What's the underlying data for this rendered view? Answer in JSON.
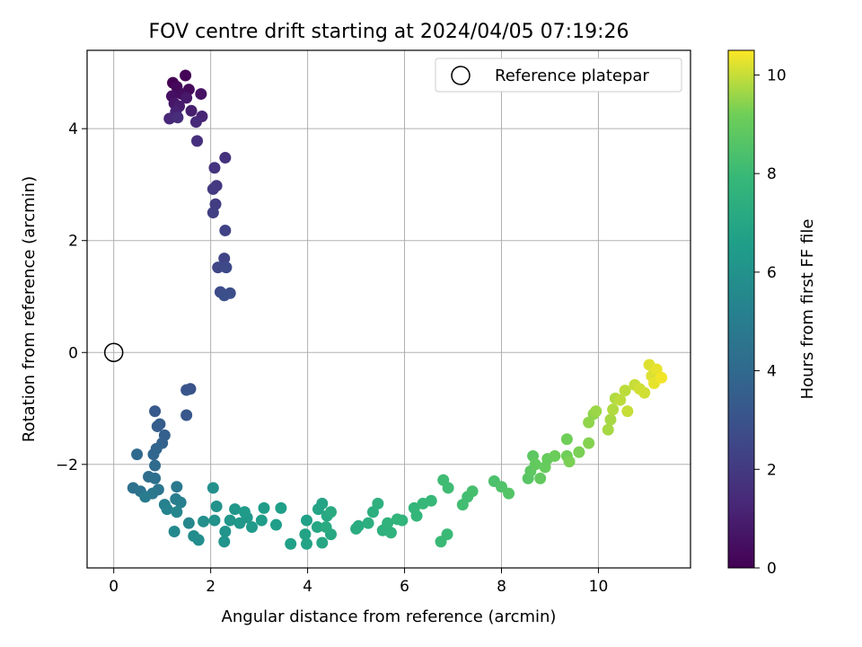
{
  "chart_data": {
    "type": "scatter",
    "title": "FOV centre drift starting at 2024/04/05 07:19:26",
    "xlabel": "Angular distance from reference (arcmin)",
    "ylabel": "Rotation from reference (arcmin)",
    "xlim": [
      -0.55,
      11.9
    ],
    "ylim": [
      -3.85,
      5.4
    ],
    "xticks": [
      0,
      2,
      4,
      6,
      8,
      10
    ],
    "yticks": [
      -2,
      0,
      2,
      4
    ],
    "grid": true,
    "legend": {
      "placement": "top-right",
      "entries": [
        "Reference platepar"
      ]
    },
    "reference_point": {
      "x": 0,
      "y": 0,
      "marker": "hollow-circle"
    },
    "colorbar": {
      "label": "Hours from first FF file",
      "range": [
        0,
        10.5
      ],
      "ticks": [
        0,
        2,
        4,
        6,
        8,
        10
      ],
      "colormap": "viridis"
    },
    "point_layout": "x, y, hours",
    "points": [
      [
        1.22,
        4.82,
        0.0
      ],
      [
        1.48,
        4.95,
        0.1
      ],
      [
        1.3,
        4.75,
        0.2
      ],
      [
        1.55,
        4.7,
        0.3
      ],
      [
        1.4,
        4.62,
        0.4
      ],
      [
        1.2,
        4.58,
        0.5
      ],
      [
        1.8,
        4.62,
        0.6
      ],
      [
        1.25,
        4.45,
        0.7
      ],
      [
        1.5,
        4.55,
        0.8
      ],
      [
        1.35,
        4.4,
        0.9
      ],
      [
        1.6,
        4.32,
        1.0
      ],
      [
        1.28,
        4.3,
        1.1
      ],
      [
        1.82,
        4.22,
        1.2
      ],
      [
        1.15,
        4.18,
        1.3
      ],
      [
        1.7,
        4.12,
        1.4
      ],
      [
        1.32,
        4.2,
        1.5
      ],
      [
        1.72,
        3.78,
        1.6
      ],
      [
        2.3,
        3.48,
        1.7
      ],
      [
        2.08,
        3.3,
        1.8
      ],
      [
        2.12,
        2.98,
        1.9
      ],
      [
        2.05,
        2.92,
        2.0
      ],
      [
        2.1,
        2.65,
        2.1
      ],
      [
        2.05,
        2.5,
        2.2
      ],
      [
        2.3,
        2.18,
        2.3
      ],
      [
        2.28,
        1.68,
        2.4
      ],
      [
        2.15,
        1.52,
        2.5
      ],
      [
        2.32,
        1.52,
        2.6
      ],
      [
        2.2,
        1.08,
        2.7
      ],
      [
        2.4,
        1.06,
        2.8
      ],
      [
        2.28,
        1.02,
        2.9
      ],
      [
        1.58,
        -0.65,
        3.0
      ],
      [
        1.5,
        -0.67,
        3.1
      ],
      [
        1.5,
        -1.12,
        3.2
      ],
      [
        0.85,
        -1.05,
        3.3
      ],
      [
        0.95,
        -1.28,
        3.4
      ],
      [
        0.9,
        -1.32,
        3.5
      ],
      [
        1.05,
        -1.48,
        3.6
      ],
      [
        1.0,
        -1.62,
        3.7
      ],
      [
        0.88,
        -1.72,
        3.8
      ],
      [
        0.82,
        -1.82,
        3.9
      ],
      [
        0.48,
        -1.82,
        4.0
      ],
      [
        0.85,
        -2.02,
        4.1
      ],
      [
        0.72,
        -2.22,
        4.2
      ],
      [
        0.85,
        -2.25,
        4.3
      ],
      [
        0.4,
        -2.42,
        4.4
      ],
      [
        0.55,
        -2.48,
        4.5
      ],
      [
        0.92,
        -2.45,
        4.6
      ],
      [
        0.8,
        -2.52,
        4.7
      ],
      [
        1.3,
        -2.4,
        4.8
      ],
      [
        0.65,
        -2.58,
        4.9
      ],
      [
        1.28,
        -2.62,
        5.0
      ],
      [
        1.38,
        -2.68,
        5.1
      ],
      [
        1.05,
        -2.72,
        5.2
      ],
      [
        1.1,
        -2.8,
        5.3
      ],
      [
        1.3,
        -2.85,
        5.4
      ],
      [
        1.55,
        -3.05,
        5.5
      ],
      [
        1.25,
        -3.2,
        5.6
      ],
      [
        1.65,
        -3.28,
        5.7
      ],
      [
        1.75,
        -3.35,
        5.8
      ],
      [
        1.85,
        -3.02,
        5.9
      ],
      [
        2.05,
        -2.42,
        5.9
      ],
      [
        2.12,
        -2.75,
        6.0
      ],
      [
        2.08,
        -3.0,
        6.0
      ],
      [
        2.3,
        -3.2,
        6.1
      ],
      [
        2.28,
        -3.38,
        6.1
      ],
      [
        2.4,
        -3.0,
        6.2
      ],
      [
        2.5,
        -2.8,
        6.2
      ],
      [
        2.6,
        -3.05,
        6.3
      ],
      [
        2.75,
        -2.95,
        6.3
      ],
      [
        2.85,
        -3.12,
        6.4
      ],
      [
        2.7,
        -2.85,
        6.4
      ],
      [
        3.1,
        -2.78,
        6.5
      ],
      [
        3.05,
        -3.0,
        6.5
      ],
      [
        3.35,
        -3.08,
        6.6
      ],
      [
        3.45,
        -2.78,
        6.6
      ],
      [
        3.65,
        -3.42,
        6.7
      ],
      [
        3.98,
        -3.0,
        6.7
      ],
      [
        3.95,
        -3.25,
        6.8
      ],
      [
        3.98,
        -3.42,
        6.8
      ],
      [
        4.22,
        -2.8,
        6.9
      ],
      [
        4.3,
        -2.7,
        6.9
      ],
      [
        4.2,
        -3.12,
        7.0
      ],
      [
        4.3,
        -3.4,
        7.0
      ],
      [
        4.4,
        -2.92,
        7.1
      ],
      [
        4.48,
        -3.25,
        7.1
      ],
      [
        4.48,
        -2.85,
        7.2
      ],
      [
        4.38,
        -3.12,
        7.2
      ],
      [
        5.0,
        -3.15,
        7.3
      ],
      [
        5.05,
        -3.1,
        7.3
      ],
      [
        5.25,
        -3.05,
        7.4
      ],
      [
        5.35,
        -2.85,
        7.4
      ],
      [
        5.45,
        -2.7,
        7.5
      ],
      [
        5.55,
        -3.18,
        7.5
      ],
      [
        5.65,
        -3.05,
        7.6
      ],
      [
        5.72,
        -3.22,
        7.6
      ],
      [
        5.85,
        -2.98,
        7.7
      ],
      [
        5.95,
        -3.0,
        7.7
      ],
      [
        6.2,
        -2.78,
        7.8
      ],
      [
        6.25,
        -2.92,
        7.8
      ],
      [
        6.38,
        -2.7,
        7.9
      ],
      [
        6.55,
        -2.65,
        7.9
      ],
      [
        6.75,
        -3.38,
        8.0
      ],
      [
        6.88,
        -3.25,
        8.0
      ],
      [
        6.8,
        -2.28,
        8.1
      ],
      [
        6.9,
        -2.42,
        8.1
      ],
      [
        7.2,
        -2.72,
        8.2
      ],
      [
        7.3,
        -2.58,
        8.2
      ],
      [
        7.4,
        -2.48,
        8.3
      ],
      [
        7.85,
        -2.3,
        8.4
      ],
      [
        8.0,
        -2.4,
        8.5
      ],
      [
        8.15,
        -2.52,
        8.6
      ],
      [
        8.55,
        -2.25,
        8.7
      ],
      [
        8.6,
        -2.12,
        8.8
      ],
      [
        8.65,
        -1.85,
        8.8
      ],
      [
        8.7,
        -2.0,
        8.9
      ],
      [
        8.8,
        -2.25,
        8.9
      ],
      [
        8.9,
        -2.05,
        9.0
      ],
      [
        8.95,
        -1.9,
        9.0
      ],
      [
        9.1,
        -1.85,
        9.1
      ],
      [
        9.35,
        -1.55,
        9.2
      ],
      [
        9.35,
        -1.85,
        9.2
      ],
      [
        9.4,
        -1.95,
        9.3
      ],
      [
        9.6,
        -1.78,
        9.3
      ],
      [
        9.8,
        -1.62,
        9.4
      ],
      [
        9.8,
        -1.25,
        9.5
      ],
      [
        9.9,
        -1.1,
        9.5
      ],
      [
        9.95,
        -1.05,
        9.6
      ],
      [
        10.2,
        -1.38,
        9.7
      ],
      [
        10.25,
        -1.2,
        9.7
      ],
      [
        10.3,
        -1.02,
        9.8
      ],
      [
        10.35,
        -0.82,
        9.8
      ],
      [
        10.45,
        -0.85,
        9.9
      ],
      [
        10.55,
        -0.68,
        9.9
      ],
      [
        10.6,
        -1.05,
        10.0
      ],
      [
        10.75,
        -0.58,
        10.0
      ],
      [
        10.85,
        -0.65,
        10.1
      ],
      [
        10.95,
        -0.72,
        10.1
      ],
      [
        11.05,
        -0.22,
        10.2
      ],
      [
        11.1,
        -0.42,
        10.2
      ],
      [
        11.15,
        -0.55,
        10.3
      ],
      [
        11.2,
        -0.3,
        10.3
      ],
      [
        11.3,
        -0.45,
        10.4
      ]
    ]
  }
}
